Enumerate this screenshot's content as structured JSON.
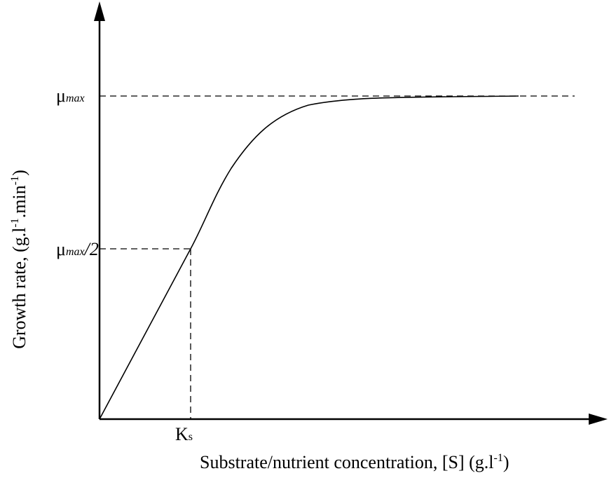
{
  "y_axis_label": [
    "Growth rate, (g.l",
    "-1",
    ".min",
    "-1",
    ")"
  ],
  "x_axis_label": [
    "Substrate/nutrient concentration, [S] (g.l",
    "-1",
    ")"
  ],
  "y_labels": {
    "mu_max": [
      "μ",
      "max"
    ],
    "half_mu_max": [
      "μ",
      "max",
      "/2"
    ]
  },
  "x_labels": {
    "ks": [
      "K",
      "s"
    ]
  }
}
